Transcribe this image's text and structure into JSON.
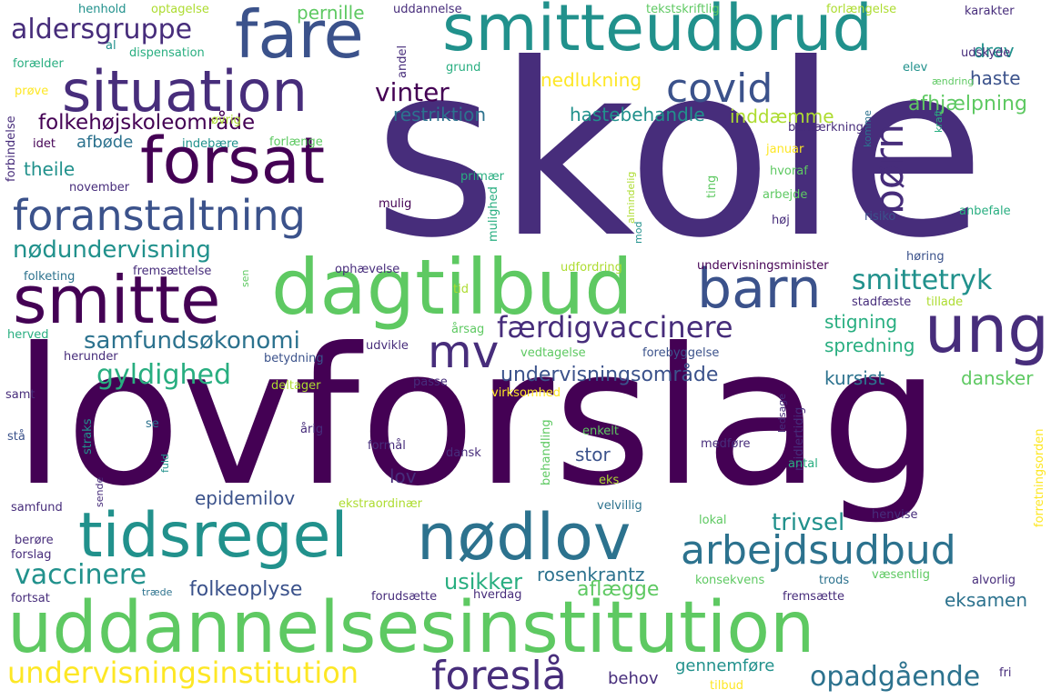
{
  "cloud": {
    "words": [
      {
        "key": "skole",
        "text": "skole"
      },
      {
        "key": "lovforslag",
        "text": "lovforslag"
      },
      {
        "key": "uddannelsesinstitution",
        "text": "uddannelsesinstitution"
      },
      {
        "key": "smitteudbrud",
        "text": "smitteudbrud"
      },
      {
        "key": "fare",
        "text": "fare"
      },
      {
        "key": "situation",
        "text": "situation"
      },
      {
        "key": "forsat",
        "text": "forsat"
      },
      {
        "key": "foranstaltning",
        "text": "foranstaltning"
      },
      {
        "key": "smitte",
        "text": "smitte"
      },
      {
        "key": "dagtilbud",
        "text": "dagtilbud"
      },
      {
        "key": "barn",
        "text": "barn"
      },
      {
        "key": "ung",
        "text": "ung"
      },
      {
        "key": "tidsregel",
        "text": "tidsregel"
      },
      {
        "key": "nodlov",
        "text": "nødlov"
      },
      {
        "key": "arbejdsudbud",
        "text": "arbejdsudbud"
      },
      {
        "key": "mv",
        "text": "mv"
      },
      {
        "key": "covid",
        "text": "covid"
      },
      {
        "key": "born",
        "text": "børn"
      },
      {
        "key": "aldersgruppe",
        "text": "aldersgruppe"
      },
      {
        "key": "vinter",
        "text": "vinter"
      },
      {
        "key": "folkehojskoleomrade",
        "text": "folkehøjskoleområde"
      },
      {
        "key": "nodundervisning",
        "text": "nødundervisning"
      },
      {
        "key": "samfundsokonomi",
        "text": "samfundsøkonomi"
      },
      {
        "key": "fardigvaccinere",
        "text": "færdigvaccinere"
      },
      {
        "key": "smittetryk",
        "text": "smittetryk"
      },
      {
        "key": "gyldighed",
        "text": "gyldighed"
      },
      {
        "key": "undervisningsomrade",
        "text": "undervisningsområde"
      },
      {
        "key": "undervisningsinstitution",
        "text": "undervisningsinstitution"
      },
      {
        "key": "foresla",
        "text": "foreslå"
      },
      {
        "key": "opadgaende",
        "text": "opadgående"
      },
      {
        "key": "vaccinere",
        "text": "vaccinere"
      },
      {
        "key": "folkeoplyse",
        "text": "folkeoplyse"
      },
      {
        "key": "epidemilov",
        "text": "epidemilov"
      },
      {
        "key": "trivsel",
        "text": "trivsel"
      },
      {
        "key": "usikker",
        "text": "usikker"
      },
      {
        "key": "rosenkrantz",
        "text": "rosenkrantz"
      },
      {
        "key": "aflaegge",
        "text": "aflægge"
      },
      {
        "key": "eksamen",
        "text": "eksamen"
      },
      {
        "key": "nedlukning",
        "text": "nedlukning"
      },
      {
        "key": "restriktion",
        "text": "restriktion"
      },
      {
        "key": "hastebehandle",
        "text": "hastebehandle"
      },
      {
        "key": "inddamme",
        "text": "inddæmme"
      },
      {
        "key": "afhjaelpning",
        "text": "afhjælpning"
      },
      {
        "key": "haste",
        "text": "haste"
      },
      {
        "key": "drev",
        "text": "drev"
      },
      {
        "key": "pernille",
        "text": "pernille"
      },
      {
        "key": "afbode",
        "text": "afbøde"
      },
      {
        "key": "theile",
        "text": "theile"
      },
      {
        "key": "stigning",
        "text": "stigning"
      },
      {
        "key": "spredning",
        "text": "spredning"
      },
      {
        "key": "kursist",
        "text": "kursist"
      },
      {
        "key": "dansker",
        "text": "dansker"
      },
      {
        "key": "stor",
        "text": "stor"
      },
      {
        "key": "lov",
        "text": "lov"
      },
      {
        "key": "behov",
        "text": "behov"
      },
      {
        "key": "gennemfore",
        "text": "gennemføre"
      },
      {
        "key": "henhold",
        "text": "henhold"
      },
      {
        "key": "optagelse",
        "text": "optagelse"
      },
      {
        "key": "uddannelse",
        "text": "uddannelse"
      },
      {
        "key": "tekstskriftlig",
        "text": "tekstskriftlig"
      },
      {
        "key": "forlaengelse",
        "text": "forlængelse"
      },
      {
        "key": "karakter",
        "text": "karakter"
      },
      {
        "key": "al",
        "text": "al"
      },
      {
        "key": "dispensation",
        "text": "dispensation"
      },
      {
        "key": "foraelder",
        "text": "forælder"
      },
      {
        "key": "andel",
        "text": "andel"
      },
      {
        "key": "grund",
        "text": "grund"
      },
      {
        "key": "elev",
        "text": "elev"
      },
      {
        "key": "aendring",
        "text": "ændring"
      },
      {
        "key": "udskyde",
        "text": "udskyde"
      },
      {
        "key": "prove",
        "text": "prøve"
      },
      {
        "key": "forbindelse",
        "text": "forbindelse"
      },
      {
        "key": "idet",
        "text": "idet"
      },
      {
        "key": "ovrig",
        "text": "øvrig"
      },
      {
        "key": "indebaere",
        "text": "indebære"
      },
      {
        "key": "forlaenge",
        "text": "forlænge"
      },
      {
        "key": "bemaerkning",
        "text": "bemærkning"
      },
      {
        "key": "komme",
        "text": "komme"
      },
      {
        "key": "kraft",
        "text": "kraft"
      },
      {
        "key": "januar",
        "text": "januar"
      },
      {
        "key": "november",
        "text": "november"
      },
      {
        "key": "primaer",
        "text": "primær"
      },
      {
        "key": "hvoraf",
        "text": "hvoraf"
      },
      {
        "key": "arbejde",
        "text": "arbejde"
      },
      {
        "key": "hoj",
        "text": "høj"
      },
      {
        "key": "risiko",
        "text": "risiko"
      },
      {
        "key": "anbefale",
        "text": "anbefale"
      },
      {
        "key": "mulig",
        "text": "mulig"
      },
      {
        "key": "mulighed",
        "text": "mulighed"
      },
      {
        "key": "mod",
        "text": "mod"
      },
      {
        "key": "almindelig",
        "text": "almindelig"
      },
      {
        "key": "ting",
        "text": "ting"
      },
      {
        "key": "horing",
        "text": "høring"
      },
      {
        "key": "folketing",
        "text": "folketing"
      },
      {
        "key": "fremsaettelse",
        "text": "fremsættelse"
      },
      {
        "key": "sen",
        "text": "sen"
      },
      {
        "key": "ophaevelse",
        "text": "ophævelse"
      },
      {
        "key": "udfordring",
        "text": "udfordring"
      },
      {
        "key": "undervisningsminister",
        "text": "undervisningsminister"
      },
      {
        "key": "tid",
        "text": "tid"
      },
      {
        "key": "stadfaeste",
        "text": "stadfæste"
      },
      {
        "key": "tillade",
        "text": "tillade"
      },
      {
        "key": "herved",
        "text": "herved"
      },
      {
        "key": "arsag",
        "text": "årsag"
      },
      {
        "key": "udvikle",
        "text": "udvikle"
      },
      {
        "key": "vedtagelse",
        "text": "vedtagelse"
      },
      {
        "key": "forebyggelse",
        "text": "forebyggelse"
      },
      {
        "key": "herunder",
        "text": "herunder"
      },
      {
        "key": "betydning",
        "text": "betydning"
      },
      {
        "key": "samt",
        "text": "samt"
      },
      {
        "key": "deltager",
        "text": "deltager"
      },
      {
        "key": "passe",
        "text": "passe"
      },
      {
        "key": "virksomhed",
        "text": "virksomhed"
      },
      {
        "key": "ledsage",
        "text": "ledsage"
      },
      {
        "key": "midlertidig",
        "text": "midlertidig"
      },
      {
        "key": "forretningsorden",
        "text": "forretningsorden"
      },
      {
        "key": "se",
        "text": "se"
      },
      {
        "key": "arig",
        "text": "årig"
      },
      {
        "key": "straks",
        "text": "straks"
      },
      {
        "key": "sta",
        "text": "stå"
      },
      {
        "key": "formal",
        "text": "formål"
      },
      {
        "key": "dansk",
        "text": "dansk"
      },
      {
        "key": "enkelt",
        "text": "enkelt"
      },
      {
        "key": "medfore",
        "text": "medføre"
      },
      {
        "key": "behandling",
        "text": "behandling"
      },
      {
        "key": "fuld",
        "text": "fuld"
      },
      {
        "key": "eks",
        "text": "eks"
      },
      {
        "key": "antal",
        "text": "antal"
      },
      {
        "key": "samfund",
        "text": "samfund"
      },
      {
        "key": "sende",
        "text": "sende"
      },
      {
        "key": "ekstraordinaer",
        "text": "ekstraordinær"
      },
      {
        "key": "velvillig",
        "text": "velvillig"
      },
      {
        "key": "henvise",
        "text": "henvise"
      },
      {
        "key": "lokal",
        "text": "lokal"
      },
      {
        "key": "berore",
        "text": "berøre"
      },
      {
        "key": "forslag",
        "text": "forslag"
      },
      {
        "key": "konsekvens",
        "text": "konsekvens"
      },
      {
        "key": "trods",
        "text": "trods"
      },
      {
        "key": "vaesentlig",
        "text": "væsentlig"
      },
      {
        "key": "alvorlig",
        "text": "alvorlig"
      },
      {
        "key": "fortsat",
        "text": "fortsat"
      },
      {
        "key": "traede",
        "text": "træde"
      },
      {
        "key": "forudsaette",
        "text": "forudsætte"
      },
      {
        "key": "hverdag",
        "text": "hverdag"
      },
      {
        "key": "fremsaette",
        "text": "fremsætte"
      },
      {
        "key": "fri",
        "text": "fri"
      },
      {
        "key": "tilbud",
        "text": "tilbud"
      }
    ]
  }
}
